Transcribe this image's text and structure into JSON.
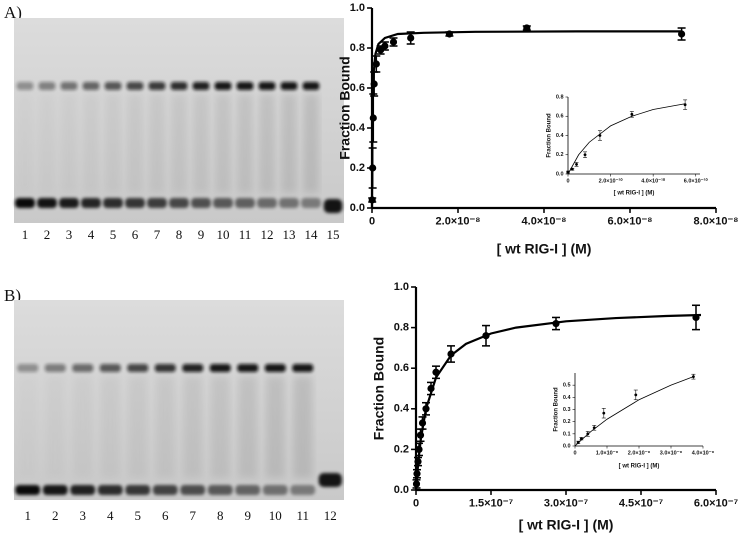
{
  "panels": [
    "A)",
    "B)"
  ],
  "gels": [
    {
      "lanes": [
        "1",
        "2",
        "3",
        "4",
        "5",
        "6",
        "7",
        "8",
        "9",
        "10",
        "11",
        "12",
        "13",
        "14",
        "15"
      ]
    },
    {
      "lanes": [
        "1",
        "2",
        "3",
        "4",
        "5",
        "6",
        "7",
        "8",
        "9",
        "10",
        "11",
        "12"
      ]
    }
  ],
  "chart_data": [
    {
      "type": "scatter",
      "xlabel": "[ wt RIG-I ] (M)",
      "ylabel": "Fraction Bound",
      "xlim": [
        0,
        8e-08
      ],
      "ylim": [
        0,
        1.0
      ],
      "xticks": [
        0,
        {
          "value": 2e-08,
          "label": "2.0×10⁻⁸"
        },
        {
          "value": 4e-08,
          "label": "4.0×10⁻⁸"
        },
        {
          "value": 6e-08,
          "label": "6.0×10⁻⁸"
        },
        {
          "value": 8e-08,
          "label": "8.0×10⁻⁸"
        }
      ],
      "yticks": [
        {
          "value": 0,
          "label": "0.0"
        },
        0.2,
        0.4,
        0.6,
        0.8,
        {
          "value": 1,
          "label": "1.0"
        }
      ],
      "series": [
        {
          "type": "scatter",
          "color": "#000000",
          "x": [
            5e-11,
            1.5e-10,
            3e-10,
            5e-10,
            1e-09,
            2e-09,
            3e-09,
            5e-09,
            9e-09,
            1.8e-08,
            3.6e-08,
            7.2e-08
          ],
          "values": [
            0.04,
            0.2,
            0.45,
            0.62,
            0.72,
            0.79,
            0.81,
            0.83,
            0.85,
            0.87,
            0.9,
            0.87
          ],
          "errors": [
            0.01,
            0.1,
            0.12,
            0.06,
            0.04,
            0.02,
            0.02,
            0.02,
            0.03,
            0.01,
            0.01,
            0.03
          ]
        },
        {
          "type": "line",
          "color": "#000000",
          "x": [
            0,
            5e-11,
            1e-10,
            2e-10,
            4e-10,
            8e-10,
            1.5e-09,
            3e-09,
            6e-09,
            1.2e-08,
            2.4e-08,
            4.8e-08,
            7.2e-08
          ],
          "values": [
            0,
            0.26,
            0.4,
            0.55,
            0.68,
            0.77,
            0.82,
            0.85,
            0.87,
            0.876,
            0.881,
            0.883,
            0.883
          ]
        }
      ]
    },
    {
      "type": "scatter",
      "xlabel": "[ wt RIG-I ] (M)",
      "ylabel": "Fraction Bound",
      "xlim": [
        0,
        6.2e-10
      ],
      "ylim": [
        0,
        0.8
      ],
      "xticks": [
        0,
        {
          "value": 2e-10,
          "label": "2.0×10⁻¹⁰"
        },
        {
          "value": 4e-10,
          "label": "4.0×10⁻¹⁰"
        },
        {
          "value": 6e-10,
          "label": "6.0×10⁻¹⁰"
        }
      ],
      "yticks": [
        {
          "value": 0,
          "label": "0.0"
        },
        0.2,
        0.4,
        0.6,
        0.8
      ],
      "series": [
        {
          "type": "scatter",
          "color": "#000000",
          "x": [
            0,
            2e-11,
            4e-11,
            8e-11,
            1.5e-10,
            3e-10,
            5.5e-10
          ],
          "values": [
            0.02,
            0.05,
            0.1,
            0.2,
            0.4,
            0.62,
            0.72
          ],
          "errors": [
            0.01,
            0.01,
            0.02,
            0.03,
            0.05,
            0.03,
            0.05
          ]
        },
        {
          "type": "line",
          "color": "#000000",
          "x": [
            0,
            5e-11,
            1e-10,
            2e-10,
            3e-10,
            4e-10,
            5e-10,
            5.5e-10
          ],
          "values": [
            0,
            0.2,
            0.33,
            0.5,
            0.6,
            0.67,
            0.71,
            0.73
          ]
        }
      ]
    },
    {
      "type": "scatter",
      "xlabel": "[ wt RIG-I ] (M)",
      "ylabel": "Fraction Bound",
      "xlim": [
        0,
        6e-07
      ],
      "ylim": [
        0,
        1.0
      ],
      "xticks": [
        0,
        {
          "value": 1.5e-07,
          "label": "1.5×10⁻⁷"
        },
        {
          "value": 3e-07,
          "label": "3.0×10⁻⁷"
        },
        {
          "value": 4.5e-07,
          "label": "4.5×10⁻⁷"
        },
        {
          "value": 6e-07,
          "label": "6.0×10⁻⁷"
        }
      ],
      "yticks": [
        {
          "value": 0,
          "label": "0.0"
        },
        0.2,
        0.4,
        0.6,
        0.8,
        {
          "value": 1,
          "label": "1.0"
        }
      ],
      "series": [
        {
          "type": "scatter",
          "color": "#000000",
          "x": [
            1e-09,
            2e-09,
            4e-09,
            6e-09,
            9e-09,
            1.3e-08,
            2e-08,
            3e-08,
            4e-08,
            7e-08,
            1.4e-07,
            2.8e-07,
            5.6e-07
          ],
          "values": [
            0.03,
            0.08,
            0.14,
            0.2,
            0.27,
            0.33,
            0.4,
            0.5,
            0.58,
            0.67,
            0.76,
            0.82,
            0.85
          ],
          "errors": [
            0.02,
            0.02,
            0.02,
            0.03,
            0.03,
            0.03,
            0.03,
            0.03,
            0.03,
            0.04,
            0.05,
            0.03,
            0.06
          ]
        },
        {
          "type": "line",
          "color": "#000000",
          "x": [
            0,
            5e-09,
            1e-08,
            2e-08,
            4e-08,
            7e-08,
            1e-07,
            1.5e-07,
            2e-07,
            3e-07,
            4e-07,
            5e-07,
            5.7e-07
          ],
          "values": [
            0,
            0.15,
            0.257,
            0.4,
            0.554,
            0.663,
            0.72,
            0.771,
            0.8,
            0.831,
            0.847,
            0.857,
            0.862
          ]
        }
      ]
    },
    {
      "type": "scatter",
      "xlabel": "[ wt RIG-I ] (M)",
      "ylabel": "Fraction Bound",
      "xlim": [
        0,
        4e-08
      ],
      "ylim": [
        0,
        0.6
      ],
      "xticks": [
        0,
        {
          "value": 1e-08,
          "label": "1.0×10⁻⁸"
        },
        {
          "value": 2e-08,
          "label": "2.0×10⁻⁸"
        },
        {
          "value": 3e-08,
          "label": "3.0×10⁻⁸"
        },
        {
          "value": 4e-08,
          "label": "4.0×10⁻⁸"
        }
      ],
      "yticks": [
        {
          "value": 0,
          "label": "0.0"
        },
        0.1,
        0.2,
        0.3,
        0.4,
        0.5
      ],
      "series": [
        {
          "type": "scatter",
          "color": "#000000",
          "x": [
            1e-09,
            2e-09,
            4e-09,
            6e-09,
            9e-09,
            1.9e-08,
            3.7e-08
          ],
          "values": [
            0.03,
            0.06,
            0.1,
            0.15,
            0.27,
            0.42,
            0.57
          ],
          "errors": [
            0.01,
            0.01,
            0.02,
            0.02,
            0.04,
            0.04,
            0.02
          ]
        },
        {
          "type": "line",
          "color": "#000000",
          "x": [
            0,
            2e-09,
            5e-09,
            1e-08,
            1.5e-08,
            2e-08,
            3e-08,
            3.7e-08
          ],
          "values": [
            0,
            0.05,
            0.12,
            0.22,
            0.3,
            0.38,
            0.5,
            0.57
          ]
        }
      ]
    }
  ]
}
